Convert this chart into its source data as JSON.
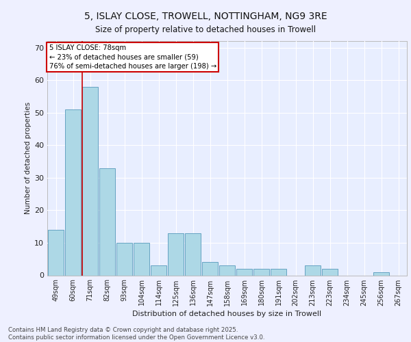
{
  "title_line1": "5, ISLAY CLOSE, TROWELL, NOTTINGHAM, NG9 3RE",
  "title_line2": "Size of property relative to detached houses in Trowell",
  "xlabel": "Distribution of detached houses by size in Trowell",
  "ylabel": "Number of detached properties",
  "categories": [
    "49sqm",
    "60sqm",
    "71sqm",
    "82sqm",
    "93sqm",
    "104sqm",
    "114sqm",
    "125sqm",
    "136sqm",
    "147sqm",
    "158sqm",
    "169sqm",
    "180sqm",
    "191sqm",
    "202sqm",
    "213sqm",
    "223sqm",
    "234sqm",
    "245sqm",
    "256sqm",
    "267sqm"
  ],
  "values": [
    14,
    51,
    58,
    33,
    10,
    10,
    3,
    13,
    13,
    4,
    3,
    2,
    2,
    2,
    0,
    3,
    2,
    0,
    0,
    1,
    0
  ],
  "bar_color": "#add8e6",
  "bar_edge_color": "#5599bb",
  "bg_color": "#e8eeff",
  "grid_color": "#ffffff",
  "red_line_x": 1.55,
  "annotation_text": "5 ISLAY CLOSE: 78sqm\n← 23% of detached houses are smaller (59)\n76% of semi-detached houses are larger (198) →",
  "annotation_box_color": "#ffffff",
  "annotation_box_edge": "#cc0000",
  "footer": "Contains HM Land Registry data © Crown copyright and database right 2025.\nContains public sector information licensed under the Open Government Licence v3.0.",
  "ylim": [
    0,
    72
  ],
  "yticks": [
    0,
    10,
    20,
    30,
    40,
    50,
    60,
    70
  ],
  "fig_bg": "#eef0ff"
}
